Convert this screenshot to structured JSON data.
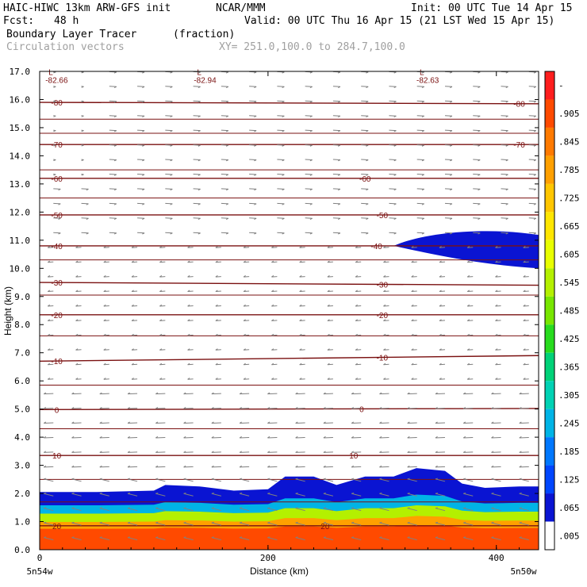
{
  "header": {
    "model": "HAIC-HIWC 13km ARW-GFS init",
    "org": "NCAR/MMM",
    "init": "Init: 00 UTC Tue 14 Apr 15",
    "fcst_label": "Fcst:",
    "fcst_value": "48 h",
    "valid": "Valid: 00 UTC Thu 16 Apr 15 (21 LST Wed 15 Apr 15)",
    "field": "Boundary Layer Tracer",
    "units": "(fraction)",
    "vectors": "Circulation vectors",
    "xy": "XY= 251.0,100.0 to 284.7,100.0"
  },
  "colors": {
    "contour": "#7a1010",
    "vector": "#808080"
  },
  "chart_data": {
    "type": "heatmap",
    "xlabel": "Distance (km)",
    "ylabel": "Height (km)",
    "xlim": [
      0,
      437
    ],
    "ylim": [
      0,
      17
    ],
    "x_ticks": [
      0,
      200,
      400
    ],
    "x_tick_labels": [
      "0",
      "200",
      "400"
    ],
    "y_ticks": [
      0,
      1,
      2,
      3,
      4,
      5,
      6,
      7,
      8,
      9,
      10,
      11,
      12,
      13,
      14,
      15,
      16,
      17
    ],
    "y_tick_labels": [
      "0.0",
      "1.0",
      "2.0",
      "3.0",
      "4.0",
      "5.0",
      "6.0",
      "7.0",
      "8.0",
      "9.0",
      "10.0",
      "11.0",
      "12.0",
      "13.0",
      "14.0",
      "15.0",
      "16.0",
      "17.0"
    ],
    "x_endpoint_labels": [
      "5n54w",
      "5n50w"
    ],
    "colorbar_levels": [
      "-",
      ".905",
      ".845",
      ".785",
      ".725",
      ".665",
      ".605",
      ".545",
      ".485",
      ".425",
      ".365",
      ".305",
      ".245",
      ".185",
      ".125",
      ".065",
      ".005"
    ],
    "colorbar_colors": [
      "#ff1e1e",
      "#ff4a00",
      "#ff7a00",
      "#ffa000",
      "#ffc600",
      "#ffe600",
      "#e8ff00",
      "#b4f000",
      "#78e600",
      "#28dc1e",
      "#00d278",
      "#00d2b4",
      "#00b4e6",
      "#0078ff",
      "#0046ff",
      "#0a14d2",
      "#ffffff"
    ],
    "tracer_profile": {
      "x_km": [
        0,
        50,
        100,
        110,
        140,
        170,
        200,
        215,
        240,
        260,
        285,
        310,
        330,
        355,
        370,
        390,
        420,
        437
      ],
      "top_km": [
        2.05,
        2.05,
        2.1,
        2.3,
        2.25,
        2.1,
        2.15,
        2.6,
        2.6,
        2.3,
        2.6,
        2.6,
        2.9,
        2.8,
        2.35,
        2.2,
        2.25,
        2.25
      ],
      "bands_km": [
        {
          "level": ".065",
          "top": 1.9
        },
        {
          "level": ".245",
          "top": 1.6
        },
        {
          "level": ".545",
          "top": 1.3
        },
        {
          "level": ".785",
          "top": 1.0
        },
        {
          "level": ".905",
          "top": 0.75
        }
      ]
    },
    "upper_tracer_patch": {
      "level": ".005",
      "x_km": [
        310,
        437
      ],
      "z_km": [
        10.0,
        11.3
      ]
    },
    "temperature_contours": [
      {
        "value": 20,
        "z_km": [
          0.85,
          0.85
        ],
        "label_pos_km": 250
      },
      {
        "value": 10,
        "z_km": [
          3.35,
          3.35
        ],
        "label_pos_km": 275
      },
      {
        "value": 0,
        "z_km": [
          4.98,
          5.02
        ],
        "label_pos_km": 282
      },
      {
        "value": -10,
        "z_km": [
          6.7,
          6.9
        ],
        "label_pos_km": 300
      },
      {
        "value": -20,
        "z_km": [
          8.35,
          8.35
        ],
        "label_pos_km": 300
      },
      {
        "value": -30,
        "z_km": [
          9.5,
          9.4
        ],
        "label_pos_km": 300
      },
      {
        "value": -40,
        "z_km": [
          10.8,
          10.8
        ],
        "label_pos_km": 295
      },
      {
        "value": -50,
        "z_km": [
          11.9,
          11.9
        ],
        "label_pos_km": 300
      },
      {
        "value": -60,
        "z_km": [
          13.2,
          13.2
        ],
        "label_pos_km": 285
      },
      {
        "value": -70,
        "z_km": [
          14.4,
          14.4
        ],
        "label_pos_km": 420
      },
      {
        "value": -80,
        "z_km": [
          15.9,
          15.85
        ],
        "label_pos_km": 420
      }
    ],
    "extra_isotherm_z_km": [
      1.7,
      2.5,
      4.3,
      5.85,
      7.6,
      9.05,
      10.3,
      12.5,
      13.5,
      14.8,
      15.3
    ],
    "min_labels": [
      {
        "text": "-82.66",
        "x_km": 5,
        "z_km": 16.7
      },
      {
        "text": "-82.94",
        "x_km": 135,
        "z_km": 16.7
      },
      {
        "text": "-82.63",
        "x_km": 330,
        "z_km": 16.7
      }
    ],
    "legend": "none",
    "grid": false
  }
}
